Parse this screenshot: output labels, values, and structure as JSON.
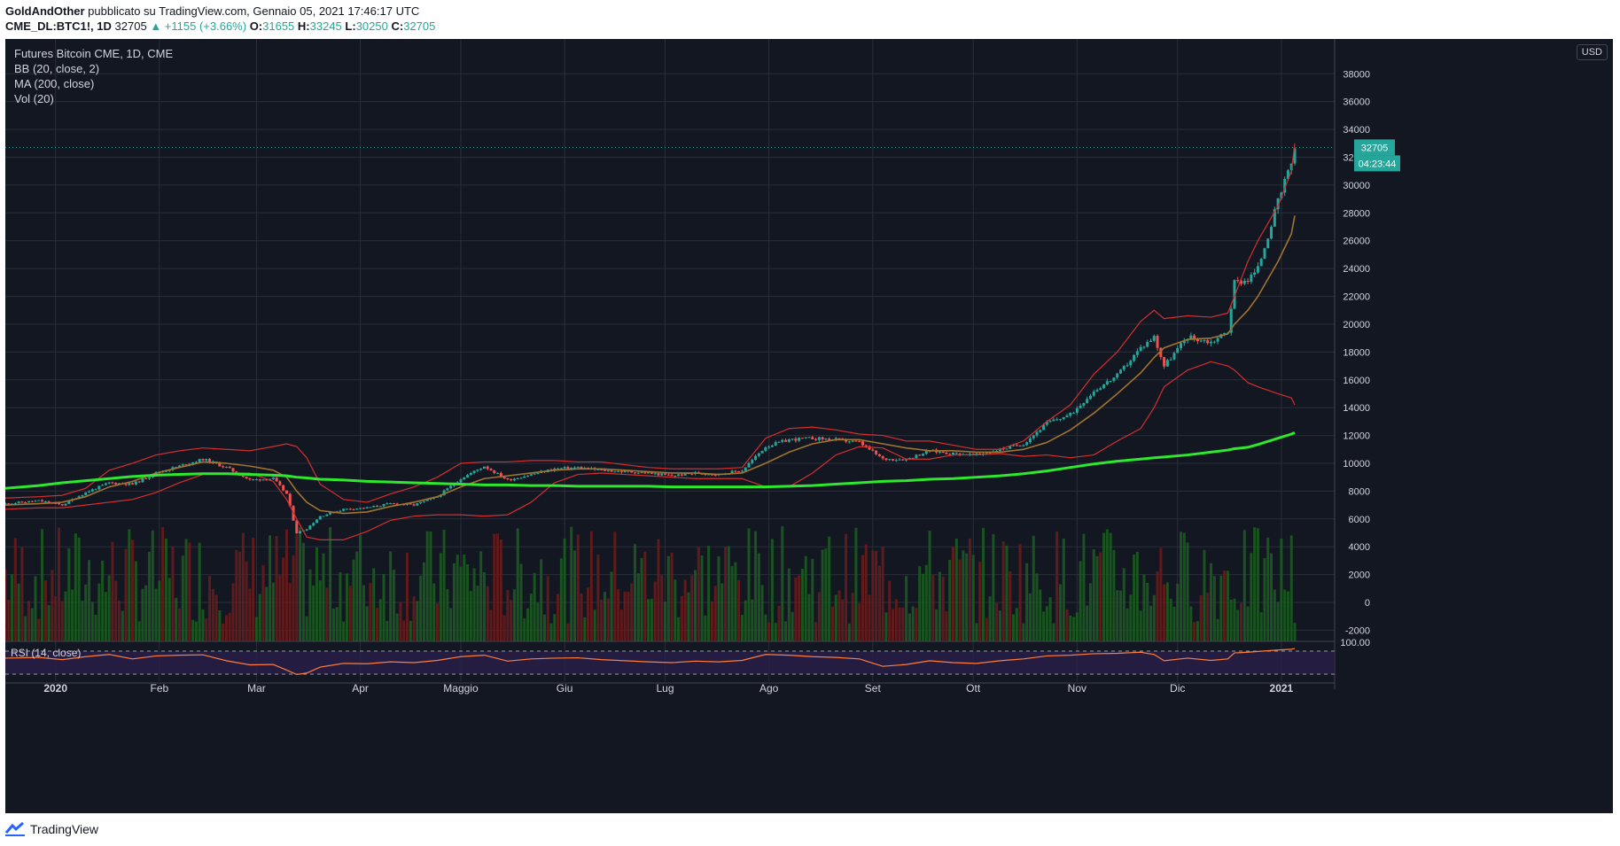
{
  "header": {
    "author": "GoldAndOther",
    "published_text": "pubblicato su TradingView.com, Gennaio 05, 2021 17:46:17 UTC",
    "symbol": "CME_DL:BTC1!, 1D",
    "last": "32705",
    "change": "▲ +1155 (+3.66%)",
    "o_label": "O:",
    "o": "31655",
    "h_label": "H:",
    "h": "33245",
    "l_label": "L:",
    "l": "30250",
    "c_label": "C:",
    "c": "32705"
  },
  "legend": {
    "title": "Futures Bitcoin CME, 1D, CME",
    "bb": "BB (20, close, 2)",
    "ma": "MA (200, close)",
    "vol": "Vol (20)"
  },
  "rsi_label": "RSI (14, close)",
  "currency_badge": "USD",
  "price_tag": "32705",
  "countdown_tag": "04:23:44",
  "footer": {
    "brand": "TradingView"
  },
  "colors": {
    "background": "#131722",
    "grid": "#2a2e39",
    "up": "#26a69a",
    "down": "#ef5350",
    "bb": "#d32f2f",
    "bb_basis": "#a0742f",
    "ma200": "#2ee82e",
    "vol_up": "#1b5e20",
    "vol_down": "#6d1b1b",
    "rsi_line": "#ff7d3b",
    "rsi_band": "#2b1f4a",
    "axis_text": "#d1d4dc",
    "price_tag": "#26a69a"
  },
  "chart_data": {
    "type": "candlestick",
    "x_axis": {
      "tick_labels": [
        "2020",
        "Feb",
        "Mar",
        "Apr",
        "Maggio",
        "Giu",
        "Lug",
        "Ago",
        "Set",
        "Ott",
        "Nov",
        "Dic",
        "2021"
      ],
      "range": [
        "2019-12-17",
        "2021-01-05"
      ]
    },
    "y_axis": {
      "tick_labels": [
        "-2000",
        "0",
        "2000",
        "4000",
        "6000",
        "8000",
        "10000",
        "12000",
        "14000",
        "16000",
        "18000",
        "20000",
        "22000",
        "24000",
        "26000",
        "28000",
        "30000",
        "32000",
        "34000",
        "36000",
        "38000"
      ],
      "range": [
        -2800,
        40500
      ],
      "position": "right"
    },
    "rsi_axis": {
      "tick_labels": [
        "100.00"
      ]
    },
    "last_price": 32705,
    "close_series": {
      "dates": [
        "2019-12-17",
        "2019-12-27",
        "2020-01-03",
        "2020-01-10",
        "2020-01-17",
        "2020-01-24",
        "2020-01-31",
        "2020-02-07",
        "2020-02-14",
        "2020-02-21",
        "2020-02-28",
        "2020-03-06",
        "2020-03-10",
        "2020-03-13",
        "2020-03-16",
        "2020-03-20",
        "2020-03-27",
        "2020-04-03",
        "2020-04-10",
        "2020-04-17",
        "2020-04-24",
        "2020-05-01",
        "2020-05-08",
        "2020-05-15",
        "2020-05-22",
        "2020-05-29",
        "2020-06-05",
        "2020-06-12",
        "2020-06-19",
        "2020-06-26",
        "2020-07-03",
        "2020-07-10",
        "2020-07-17",
        "2020-07-24",
        "2020-07-31",
        "2020-08-07",
        "2020-08-14",
        "2020-08-21",
        "2020-08-28",
        "2020-09-04",
        "2020-09-11",
        "2020-09-18",
        "2020-09-25",
        "2020-10-02",
        "2020-10-09",
        "2020-10-16",
        "2020-10-23",
        "2020-10-30",
        "2020-11-06",
        "2020-11-13",
        "2020-11-20",
        "2020-11-24",
        "2020-11-27",
        "2020-12-04",
        "2020-12-11",
        "2020-12-16",
        "2020-12-18",
        "2020-12-22",
        "2020-12-25",
        "2020-12-31",
        "2021-01-04",
        "2021-01-05"
      ],
      "values": [
        7100,
        7300,
        7000,
        7900,
        8600,
        8500,
        9300,
        9800,
        10300,
        9700,
        8800,
        8900,
        7800,
        5000,
        5300,
        6200,
        6700,
        6800,
        7100,
        7000,
        7600,
        8900,
        9800,
        8800,
        9200,
        9600,
        9700,
        9500,
        9400,
        9300,
        9100,
        9300,
        9200,
        9500,
        11200,
        11700,
        11800,
        11700,
        11500,
        10300,
        10300,
        10900,
        10700,
        10600,
        11000,
        11400,
        12900,
        13500,
        15200,
        16300,
        18300,
        19100,
        17000,
        19100,
        18700,
        19500,
        23000,
        23200,
        24000,
        28800,
        31550,
        32705
      ]
    },
    "bollinger": {
      "upper": [
        7500,
        7600,
        7700,
        8200,
        9500,
        10000,
        10600,
        10900,
        11100,
        11000,
        10900,
        11200,
        11400,
        11200,
        10400,
        8500,
        7400,
        7200,
        7800,
        8300,
        9000,
        10000,
        10100,
        10100,
        10200,
        10200,
        10100,
        10100,
        9900,
        9700,
        9600,
        9600,
        9600,
        9700,
        11800,
        12500,
        12600,
        12400,
        12100,
        12000,
        11600,
        11600,
        11300,
        11000,
        11000,
        11600,
        13000,
        14200,
        16400,
        18000,
        20200,
        21000,
        20400,
        20600,
        20500,
        20800,
        22000,
        24500,
        26000,
        28500,
        31000,
        33000
      ],
      "basis": [
        7000,
        7100,
        7200,
        7600,
        8300,
        8700,
        9300,
        9700,
        10100,
        10000,
        9800,
        9500,
        9000,
        8000,
        7200,
        6600,
        6400,
        6500,
        6900,
        7200,
        7600,
        8300,
        8900,
        9100,
        9300,
        9500,
        9600,
        9600,
        9500,
        9400,
        9300,
        9300,
        9200,
        9300,
        10000,
        10800,
        11400,
        11700,
        11700,
        11400,
        11100,
        10900,
        10900,
        10800,
        10800,
        11000,
        11500,
        12400,
        13600,
        15000,
        16500,
        17600,
        18300,
        18900,
        19000,
        19300,
        20000,
        21000,
        22000,
        24500,
        26500,
        27800
      ],
      "lower": [
        6700,
        6800,
        6800,
        7000,
        7200,
        7400,
        7900,
        8600,
        9200,
        9300,
        9300,
        8700,
        7400,
        6000,
        4700,
        4500,
        4500,
        5100,
        5900,
        6200,
        6300,
        6300,
        6200,
        6300,
        7200,
        8600,
        9200,
        9300,
        9200,
        9100,
        9000,
        8900,
        8900,
        8900,
        8300,
        8300,
        9300,
        10600,
        11200,
        11100,
        10300,
        10300,
        10600,
        10600,
        10700,
        10500,
        10600,
        10400,
        10600,
        11600,
        12500,
        14000,
        15500,
        16700,
        17300,
        17000,
        16700,
        15800,
        15500,
        15000,
        14700,
        14200
      ]
    },
    "ma200": {
      "values": [
        8200,
        8400,
        8600,
        8750,
        8900,
        9050,
        9150,
        9200,
        9250,
        9250,
        9200,
        9150,
        9100,
        9000,
        8950,
        8850,
        8800,
        8700,
        8650,
        8600,
        8550,
        8500,
        8450,
        8450,
        8400,
        8400,
        8350,
        8350,
        8350,
        8350,
        8300,
        8300,
        8300,
        8300,
        8300,
        8350,
        8400,
        8500,
        8600,
        8700,
        8750,
        8850,
        8900,
        9000,
        9100,
        9250,
        9450,
        9700,
        9950,
        10150,
        10300,
        10400,
        10450,
        10600,
        10800,
        10950,
        11050,
        11150,
        11350,
        11800,
        12100,
        12200
      ]
    },
    "volume_description": "Volume bars (green up / red down) drawn in the lower portion of the price pane, roughly in 0 - 6000 (scale shared with price axis visual baseline)",
    "rsi": {
      "levels": [
        "30",
        "70"
      ],
      "values": [
        62,
        64,
        58,
        66,
        72,
        60,
        68,
        70,
        71,
        55,
        44,
        45,
        30,
        18,
        22,
        38,
        48,
        47,
        52,
        50,
        56,
        66,
        70,
        54,
        60,
        62,
        63,
        58,
        55,
        52,
        50,
        54,
        52,
        56,
        72,
        70,
        66,
        64,
        60,
        40,
        45,
        55,
        50,
        48,
        55,
        60,
        68,
        70,
        74,
        75,
        78,
        72,
        55,
        62,
        56,
        60,
        76,
        78,
        80,
        84,
        86,
        88
      ]
    }
  }
}
